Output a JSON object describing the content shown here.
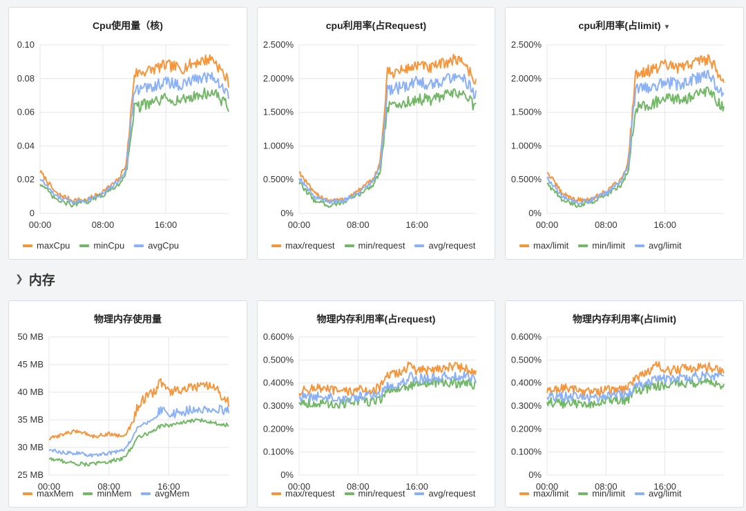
{
  "colors": {
    "max": "#f6953a",
    "min": "#72b765",
    "avg": "#8ab0f8",
    "grid": "#e4e6ea"
  },
  "row_header": {
    "icon": "chevron-down-icon",
    "label": "内存"
  },
  "panels": [
    {
      "title": "Cpu使用量（核)",
      "dropdown": false,
      "legend": [
        "maxCpu",
        "minCpu",
        "avgCpu"
      ]
    },
    {
      "title": "cpu利用率(占Request)",
      "dropdown": false,
      "legend": [
        "max/request",
        "min/request",
        "avg/request"
      ]
    },
    {
      "title": "cpu利用率(占limit)",
      "dropdown": true,
      "dropdown_icon": "caret-down-icon",
      "legend": [
        "max/limit",
        "min/limit",
        "avg/limit"
      ]
    },
    {
      "title": "物理内存使用量",
      "dropdown": false,
      "legend": [
        "maxMem",
        "minMem",
        "avgMem"
      ]
    },
    {
      "title": "物理内存利用率(占request)",
      "dropdown": false,
      "legend": [
        "max/request",
        "min/request",
        "avg/request"
      ]
    },
    {
      "title": "物理内存利用率(占limit)",
      "dropdown": false,
      "legend": [
        "max/limit",
        "min/limit",
        "avg/limit"
      ]
    }
  ],
  "chart_data": [
    {
      "type": "line",
      "title": "Cpu使用量（核)",
      "x": [
        "00:00",
        "02:00",
        "04:00",
        "06:00",
        "08:00",
        "10:00",
        "11:00",
        "12:00",
        "14:00",
        "16:00",
        "18:00",
        "20:00",
        "22:00",
        "24:00"
      ],
      "xticks": [
        "00:00",
        "08:00",
        "16:00"
      ],
      "yticks": [
        "0",
        "0.02",
        "0.04",
        "0.06",
        "0.08",
        "0.10"
      ],
      "ylim": [
        0,
        0.1
      ],
      "grid": true,
      "legend_position": "bottom-left",
      "series": [
        {
          "name": "maxCpu",
          "values": [
            0.025,
            0.012,
            0.008,
            0.008,
            0.013,
            0.02,
            0.03,
            0.083,
            0.085,
            0.088,
            0.086,
            0.09,
            0.092,
            0.078
          ]
        },
        {
          "name": "minCpu",
          "values": [
            0.018,
            0.008,
            0.005,
            0.007,
            0.011,
            0.017,
            0.025,
            0.063,
            0.065,
            0.068,
            0.067,
            0.07,
            0.072,
            0.063
          ]
        },
        {
          "name": "avgCpu",
          "values": [
            0.021,
            0.01,
            0.007,
            0.008,
            0.012,
            0.019,
            0.027,
            0.073,
            0.075,
            0.078,
            0.076,
            0.08,
            0.082,
            0.07
          ]
        }
      ]
    },
    {
      "type": "line",
      "title": "cpu利用率(占Request)",
      "x": [
        "00:00",
        "02:00",
        "04:00",
        "06:00",
        "08:00",
        "10:00",
        "11:00",
        "12:00",
        "14:00",
        "16:00",
        "18:00",
        "20:00",
        "22:00",
        "24:00"
      ],
      "xticks": [
        "00:00",
        "08:00",
        "16:00"
      ],
      "yticks": [
        "0%",
        "0.500%",
        "1.000%",
        "1.500%",
        "2.000%",
        "2.500%"
      ],
      "ylim": [
        0,
        2.5
      ],
      "grid": true,
      "legend_position": "bottom-left",
      "series": [
        {
          "name": "max/request",
          "values": [
            0.62,
            0.3,
            0.2,
            0.2,
            0.33,
            0.5,
            0.75,
            2.08,
            2.12,
            2.2,
            2.15,
            2.25,
            2.3,
            1.95
          ]
        },
        {
          "name": "min/request",
          "values": [
            0.45,
            0.2,
            0.12,
            0.17,
            0.27,
            0.42,
            0.62,
            1.58,
            1.62,
            1.7,
            1.68,
            1.75,
            1.8,
            1.58
          ]
        },
        {
          "name": "avg/request",
          "values": [
            0.53,
            0.25,
            0.17,
            0.19,
            0.3,
            0.47,
            0.68,
            1.83,
            1.87,
            1.95,
            1.9,
            2.0,
            2.05,
            1.75
          ]
        }
      ]
    },
    {
      "type": "line",
      "title": "cpu利用率(占limit)",
      "x": [
        "00:00",
        "02:00",
        "04:00",
        "06:00",
        "08:00",
        "10:00",
        "11:00",
        "12:00",
        "14:00",
        "16:00",
        "18:00",
        "20:00",
        "22:00",
        "24:00"
      ],
      "xticks": [
        "00:00",
        "08:00",
        "16:00"
      ],
      "yticks": [
        "0%",
        "0.500%",
        "1.000%",
        "1.500%",
        "2.000%",
        "2.500%"
      ],
      "ylim": [
        0,
        2.5
      ],
      "grid": true,
      "legend_position": "bottom-left",
      "series": [
        {
          "name": "max/limit",
          "values": [
            0.62,
            0.3,
            0.2,
            0.2,
            0.33,
            0.5,
            0.75,
            2.08,
            2.12,
            2.2,
            2.15,
            2.25,
            2.3,
            1.95
          ]
        },
        {
          "name": "min/limit",
          "values": [
            0.45,
            0.2,
            0.12,
            0.17,
            0.27,
            0.42,
            0.62,
            1.58,
            1.62,
            1.7,
            1.68,
            1.75,
            1.8,
            1.58
          ]
        },
        {
          "name": "avg/limit",
          "values": [
            0.53,
            0.25,
            0.17,
            0.19,
            0.3,
            0.47,
            0.68,
            1.83,
            1.87,
            1.95,
            1.9,
            2.0,
            2.05,
            1.75
          ]
        }
      ]
    },
    {
      "type": "line",
      "title": "物理内存使用量",
      "x": [
        "00:00",
        "02:00",
        "04:00",
        "06:00",
        "08:00",
        "10:00",
        "11:00",
        "12:00",
        "14:00",
        "15:00",
        "16:00",
        "18:00",
        "20:00",
        "22:00",
        "24:00"
      ],
      "xticks": [
        "00:00",
        "08:00",
        "16:00"
      ],
      "yticks": [
        "25 MB",
        "30 MB",
        "35 MB",
        "40 MB",
        "45 MB",
        "50 MB"
      ],
      "ylim": [
        25,
        50
      ],
      "grid": true,
      "legend_position": "bottom-left",
      "series": [
        {
          "name": "maxMem",
          "values": [
            31.5,
            32.5,
            33.0,
            32.0,
            32.5,
            32.0,
            34.0,
            38.0,
            40.0,
            42.0,
            40.0,
            40.5,
            41.0,
            41.0,
            38.0
          ]
        },
        {
          "name": "minMem",
          "values": [
            28.0,
            27.5,
            27.0,
            27.0,
            27.5,
            28.0,
            30.0,
            32.0,
            33.0,
            34.0,
            34.0,
            34.5,
            35.0,
            34.5,
            34.0
          ]
        },
        {
          "name": "avgMem",
          "values": [
            29.5,
            29.0,
            29.0,
            28.5,
            29.0,
            29.5,
            31.5,
            34.0,
            35.0,
            37.0,
            36.0,
            36.5,
            37.0,
            37.0,
            36.5
          ]
        }
      ]
    },
    {
      "type": "line",
      "title": "物理内存利用率(占request)",
      "x": [
        "00:00",
        "02:00",
        "04:00",
        "06:00",
        "08:00",
        "10:00",
        "11:00",
        "12:00",
        "14:00",
        "15:00",
        "16:00",
        "18:00",
        "20:00",
        "22:00",
        "24:00"
      ],
      "xticks": [
        "00:00",
        "08:00",
        "16:00"
      ],
      "yticks": [
        "0%",
        "0.100%",
        "0.200%",
        "0.300%",
        "0.400%",
        "0.500%",
        "0.600%"
      ],
      "ylim": [
        0,
        0.6
      ],
      "grid": true,
      "legend_position": "bottom-left",
      "series": [
        {
          "name": "max/request",
          "values": [
            0.36,
            0.38,
            0.37,
            0.36,
            0.37,
            0.37,
            0.38,
            0.43,
            0.45,
            0.48,
            0.45,
            0.46,
            0.47,
            0.47,
            0.44
          ]
        },
        {
          "name": "min/request",
          "values": [
            0.32,
            0.31,
            0.31,
            0.31,
            0.32,
            0.32,
            0.33,
            0.37,
            0.38,
            0.39,
            0.39,
            0.4,
            0.4,
            0.4,
            0.39
          ]
        },
        {
          "name": "avg/request",
          "values": [
            0.34,
            0.34,
            0.34,
            0.33,
            0.34,
            0.35,
            0.35,
            0.39,
            0.4,
            0.43,
            0.42,
            0.42,
            0.43,
            0.43,
            0.42
          ]
        }
      ]
    },
    {
      "type": "line",
      "title": "物理内存利用率(占limit)",
      "x": [
        "00:00",
        "02:00",
        "04:00",
        "06:00",
        "08:00",
        "10:00",
        "11:00",
        "12:00",
        "14:00",
        "15:00",
        "16:00",
        "18:00",
        "20:00",
        "22:00",
        "24:00"
      ],
      "xticks": [
        "00:00",
        "08:00",
        "16:00"
      ],
      "yticks": [
        "0%",
        "0.100%",
        "0.200%",
        "0.300%",
        "0.400%",
        "0.500%",
        "0.600%"
      ],
      "ylim": [
        0,
        0.6
      ],
      "grid": true,
      "legend_position": "bottom-left",
      "series": [
        {
          "name": "max/limit",
          "values": [
            0.36,
            0.38,
            0.37,
            0.36,
            0.37,
            0.37,
            0.38,
            0.43,
            0.45,
            0.48,
            0.45,
            0.46,
            0.47,
            0.47,
            0.44
          ]
        },
        {
          "name": "min/limit",
          "values": [
            0.32,
            0.31,
            0.31,
            0.31,
            0.32,
            0.32,
            0.33,
            0.37,
            0.38,
            0.39,
            0.39,
            0.4,
            0.4,
            0.4,
            0.39
          ]
        },
        {
          "name": "avg/limit",
          "values": [
            0.34,
            0.34,
            0.34,
            0.33,
            0.34,
            0.35,
            0.35,
            0.39,
            0.4,
            0.43,
            0.42,
            0.42,
            0.43,
            0.43,
            0.42
          ]
        }
      ]
    }
  ]
}
